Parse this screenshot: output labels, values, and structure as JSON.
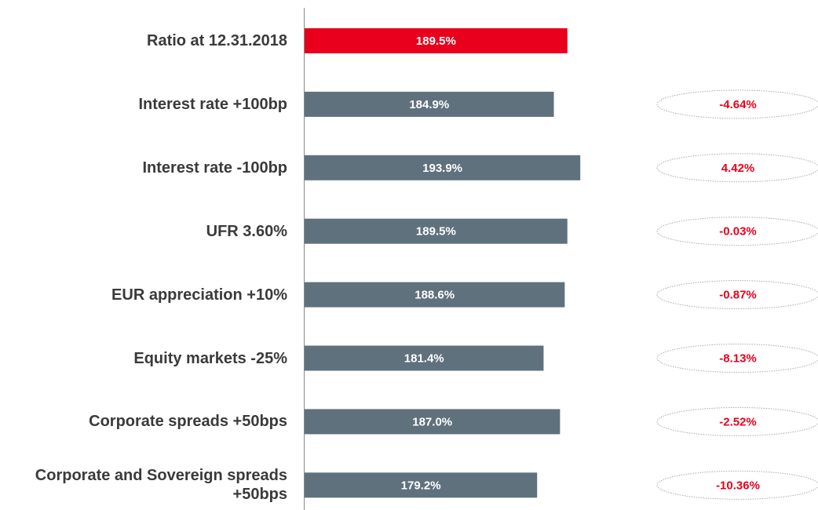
{
  "chart_data": {
    "type": "bar",
    "orientation": "horizontal",
    "categories": [
      "Ratio at 12.31.2018",
      "Interest rate +100bp",
      "Interest rate -100bp",
      "UFR 3.60%",
      "EUR appreciation +10%",
      "Equity markets -25%",
      "Corporate spreads +50bps",
      "Corporate and Sovereign spreads +50bps"
    ],
    "values": [
      189.5,
      184.9,
      193.9,
      189.5,
      188.6,
      181.4,
      187.0,
      179.2
    ],
    "value_labels": [
      "189.5%",
      "184.9%",
      "193.9%",
      "189.5%",
      "188.6%",
      "181.4%",
      "187.0%",
      "179.2%"
    ],
    "colors": [
      "#e8001c",
      "#5f717d",
      "#5f717d",
      "#5f717d",
      "#5f717d",
      "#5f717d",
      "#5f717d",
      "#5f717d"
    ],
    "xlim": [
      100,
      200
    ],
    "annotations": [
      "-4.64%",
      "4.42%",
      "-0.03%",
      "-0.87%",
      "-8.13%",
      "-2.52%",
      "-10.36%"
    ],
    "annotation_color": "#e8001c"
  }
}
